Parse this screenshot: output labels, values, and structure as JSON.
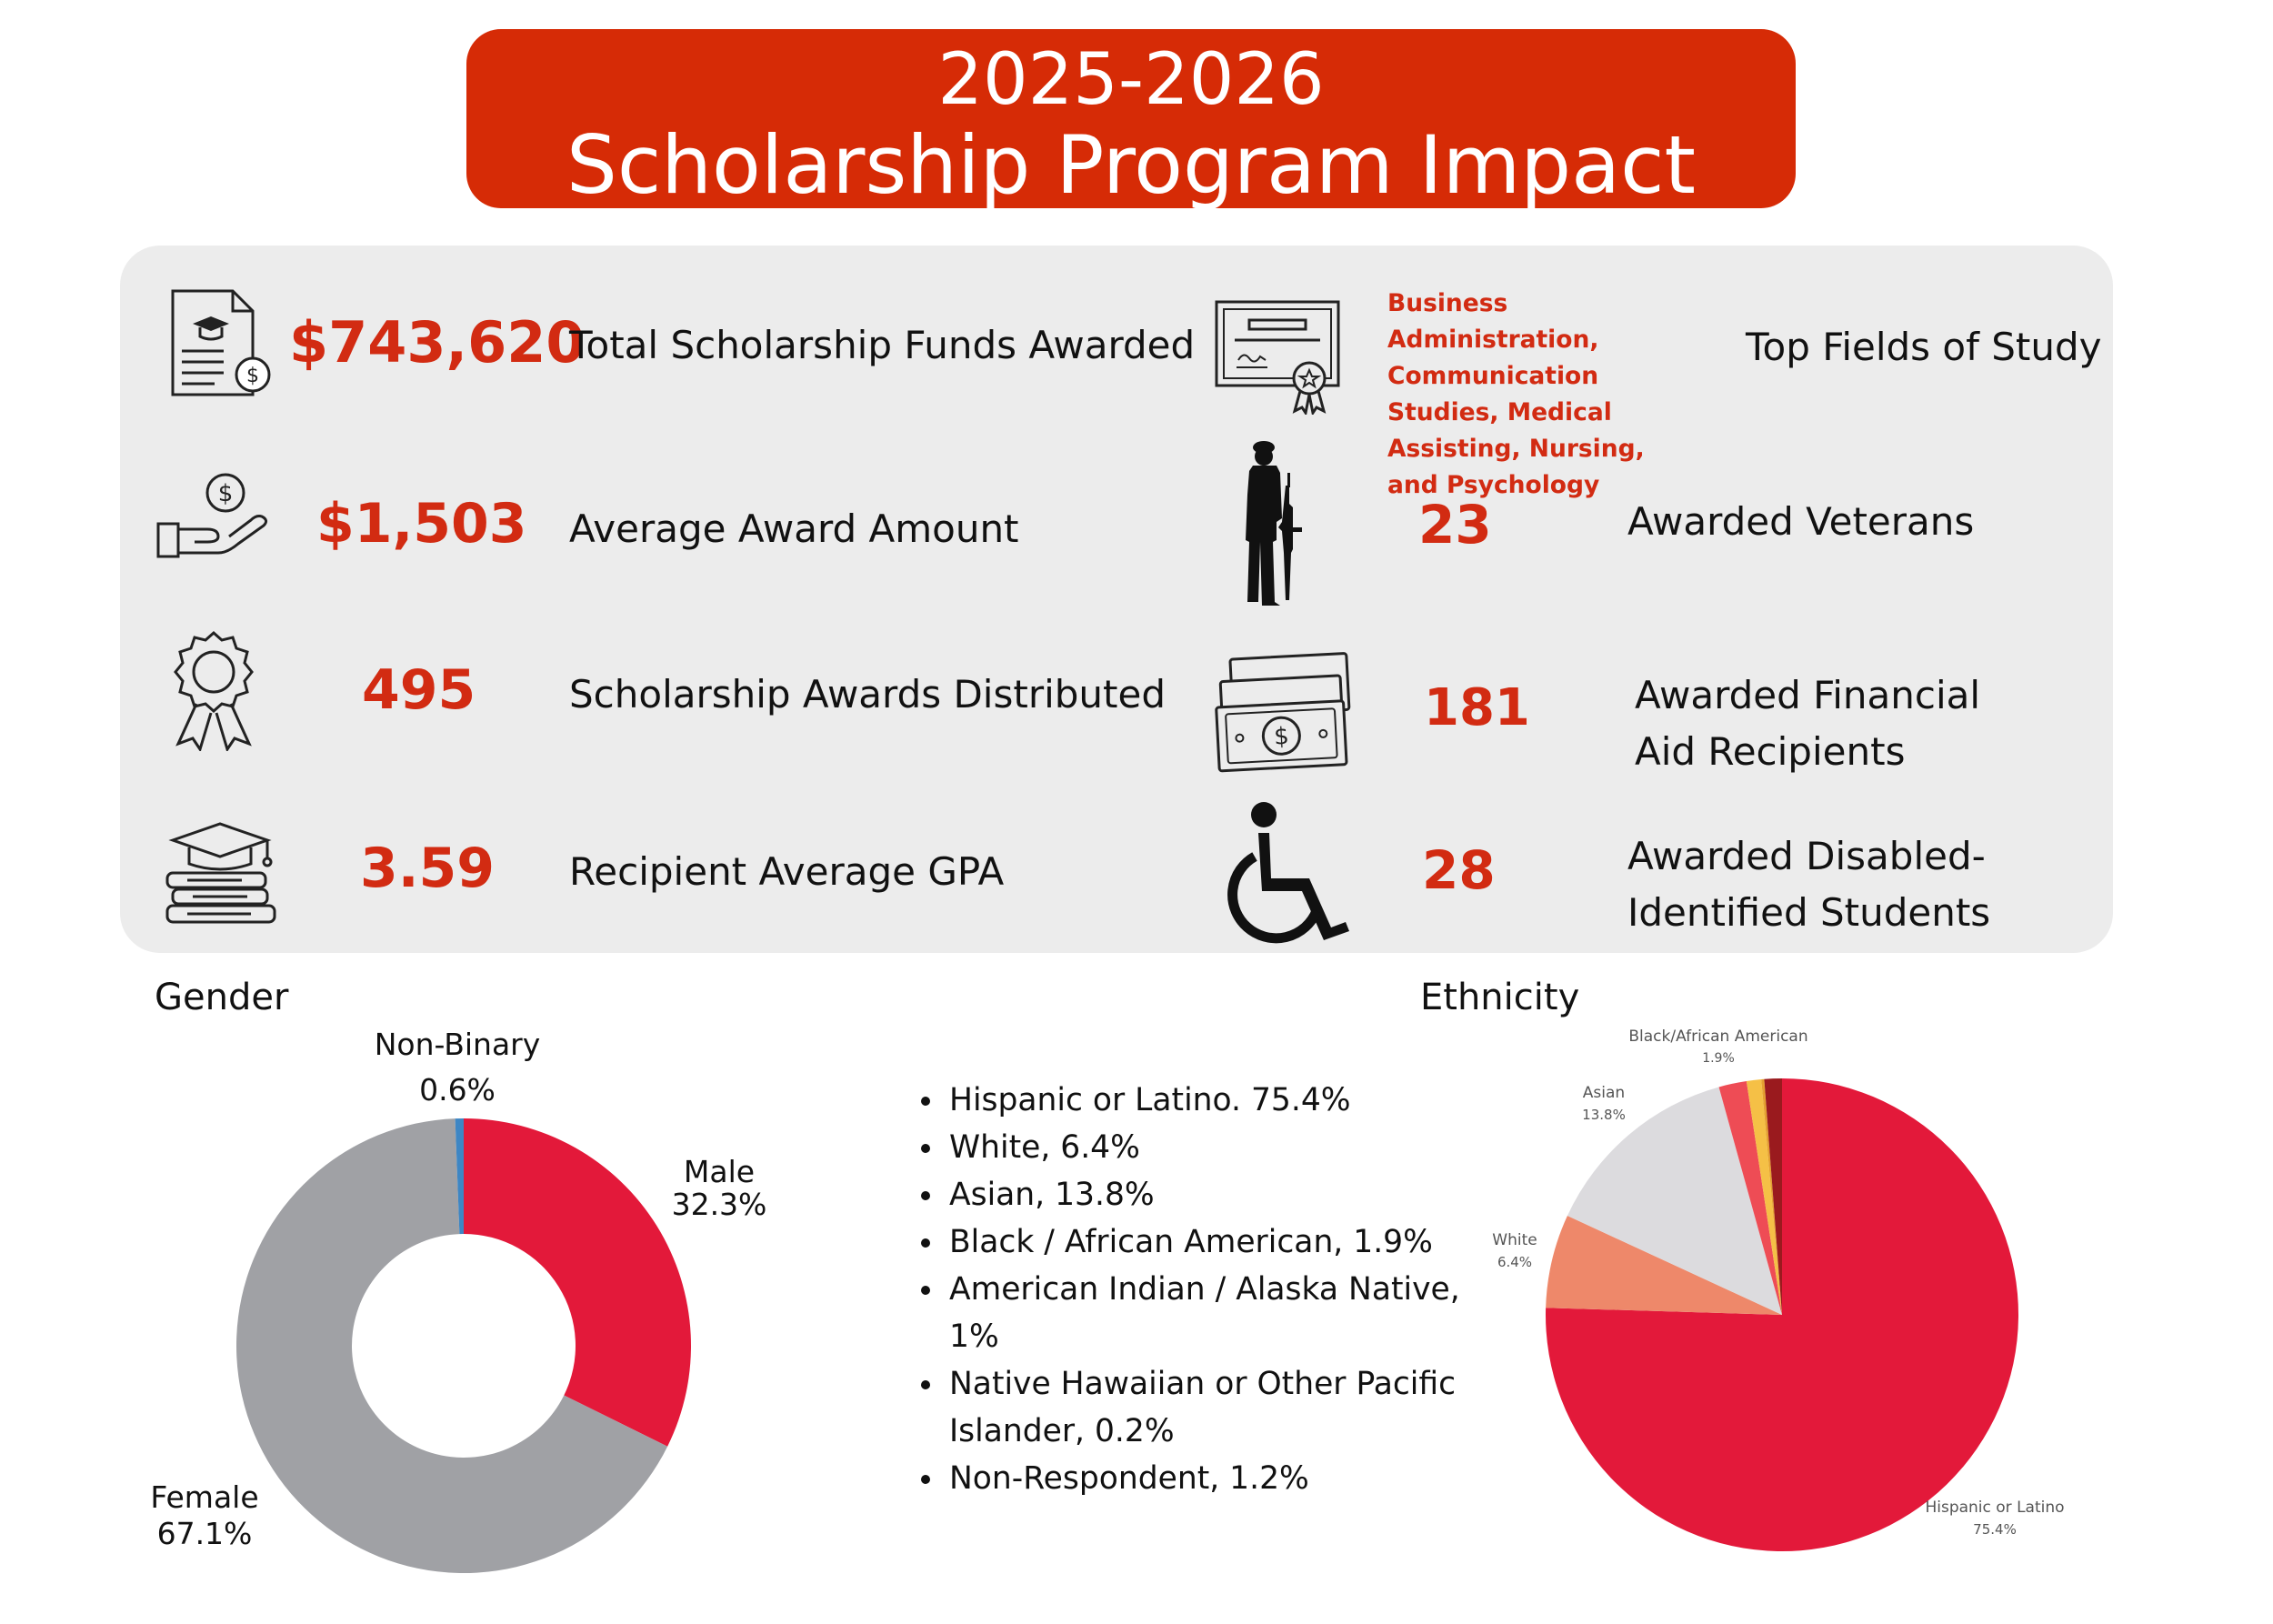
{
  "header": {
    "year": "2025-2026",
    "title": "Scholarship Program Impact"
  },
  "colors": {
    "accent": "#D62B06",
    "value_red": "#D22B12",
    "panel": "#ECECEC"
  },
  "stats": {
    "funds": {
      "value": "$743,620",
      "label": "Total Scholarship Funds Awarded",
      "icon": "scholarship-document-icon"
    },
    "average": {
      "value": "$1,503",
      "label": "Average Award Amount",
      "icon": "hand-money-icon"
    },
    "awards": {
      "value": "495",
      "label": "Scholarship Awards Distributed",
      "icon": "award-ribbon-icon"
    },
    "gpa": {
      "value": "3.59",
      "label": "Recipient Average GPA",
      "icon": "graduation-books-icon"
    },
    "fields": {
      "value": "Business Administration, Communication Studies, Medical Assisting, Nursing, and Psychology",
      "label": "Top Fields of Study",
      "icon": "certificate-icon"
    },
    "veterans": {
      "value": "23",
      "label": "Awarded Veterans",
      "icon": "soldier-icon"
    },
    "finaid": {
      "value": "181",
      "label": "Awarded Financial Aid Recipients",
      "icon": "cash-bills-icon"
    },
    "disabled": {
      "value": "28",
      "label": "Awarded Disabled-Identified Students",
      "icon": "wheelchair-icon"
    }
  },
  "gender": {
    "heading": "Gender",
    "labels": {
      "nonbinary": {
        "name": "Non-Binary",
        "pct": "0.6%"
      },
      "male": {
        "name": "Male",
        "pct": "32.3%"
      },
      "female": {
        "name": "Female",
        "pct": "67.1%"
      }
    }
  },
  "ethnicity": {
    "heading": "Ethnicity",
    "list": [
      "Hispanic or Latino. 75.4%",
      "White, 6.4%",
      "Asian, 13.8%",
      "Black / African American, 1.9%",
      "American Indian / Alaska Native, 1%",
      "Native Hawaiian or Other Pacific Islander, 0.2%",
      "Non-Respondent, 1.2%"
    ],
    "pie_labels": {
      "black": {
        "name": "Black/African American",
        "pct": "1.9%"
      },
      "asian": {
        "name": "Asian",
        "pct": "13.8%"
      },
      "white": {
        "name": "White",
        "pct": "6.4%"
      },
      "hispanic": {
        "name": "Hispanic or Latino",
        "pct": "75.4%"
      }
    }
  },
  "chart_data": [
    {
      "type": "pie",
      "title": "Gender",
      "categories": [
        "Male",
        "Female",
        "Non-Binary"
      ],
      "values": [
        32.3,
        67.1,
        0.6
      ],
      "colors": [
        "#E3193A",
        "#A0A1A5",
        "#3E86C4"
      ],
      "donut": true
    },
    {
      "type": "pie",
      "title": "Ethnicity",
      "categories": [
        "Hispanic or Latino",
        "White",
        "Asian",
        "Black / African American",
        "American Indian / Alaska Native",
        "Native Hawaiian or Other Pacific Islander",
        "Non-Respondent"
      ],
      "values": [
        75.4,
        6.4,
        13.8,
        1.9,
        1.0,
        0.2,
        1.2
      ],
      "colors": [
        "#E3193A",
        "#EE886A",
        "#DCDBDE",
        "#EE4C55",
        "#F5C046",
        "#E4A030",
        "#9A1A1E"
      ]
    }
  ]
}
